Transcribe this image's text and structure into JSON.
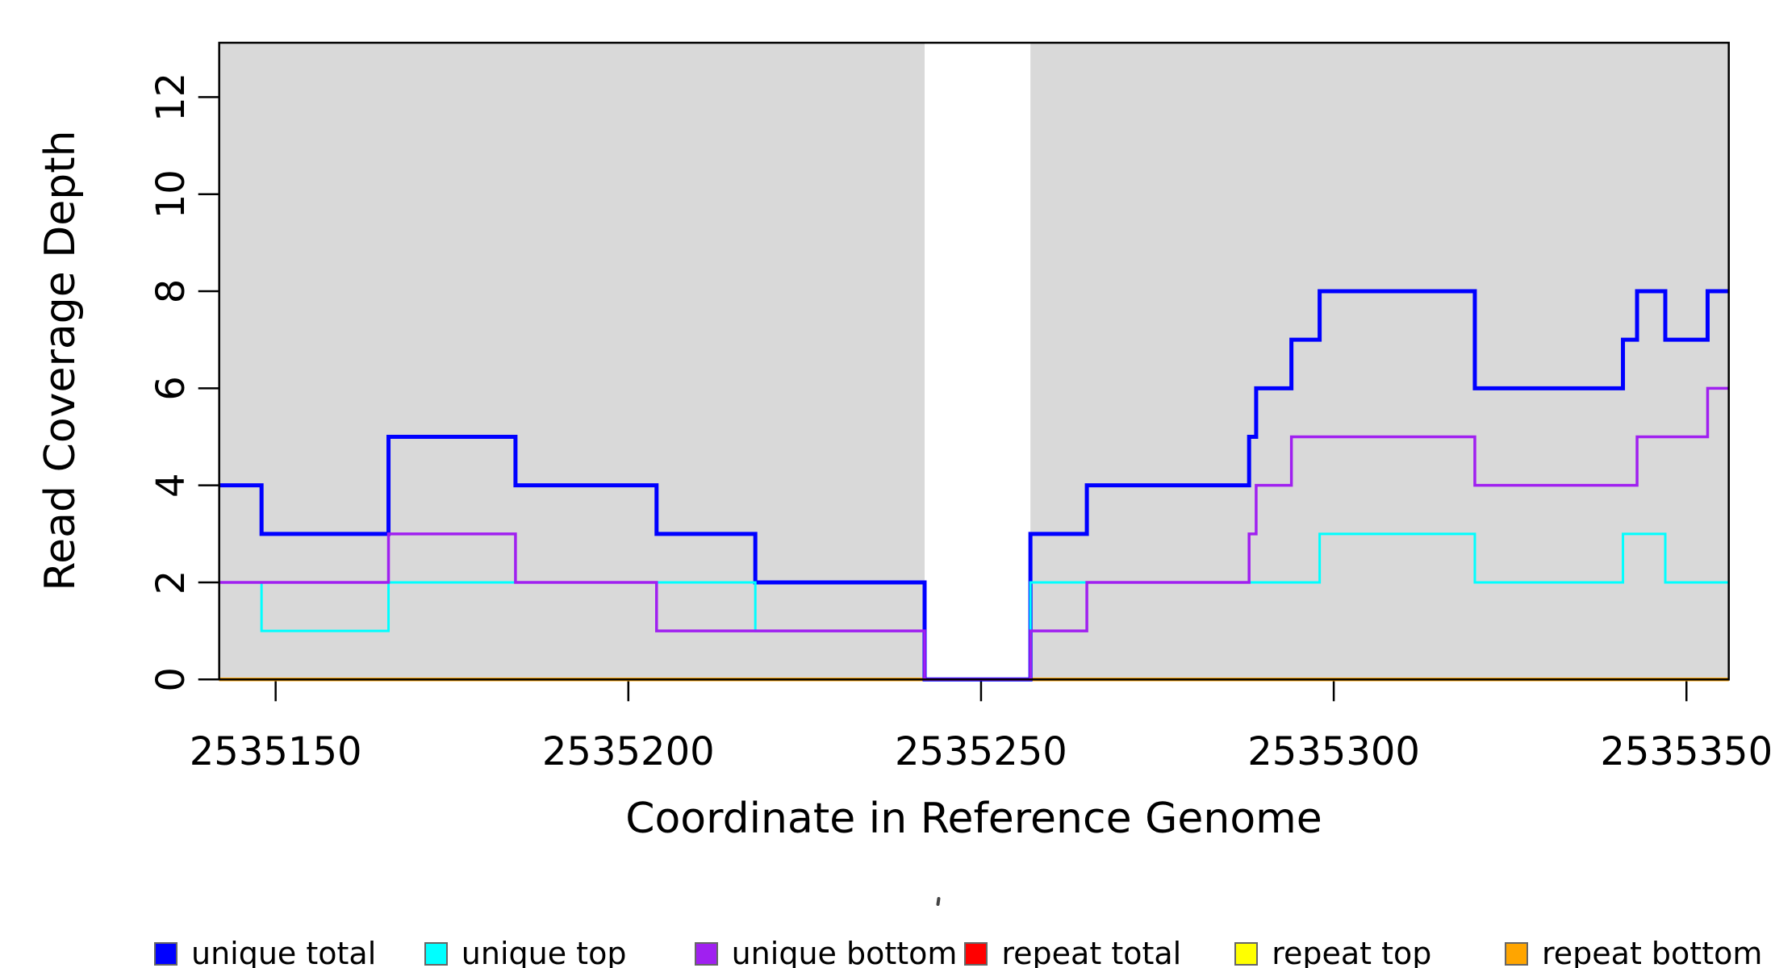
{
  "chart_data": {
    "type": "line",
    "subtype": "step-after",
    "title": "",
    "xlabel": "Coordinate in Reference Genome",
    "ylabel": "Read Coverage Depth",
    "xlim": [
      2535142,
      2535356
    ],
    "ylim": [
      0,
      13.12
    ],
    "x_ticks": [
      2535150,
      2535200,
      2535250,
      2535300,
      2535350
    ],
    "y_ticks": [
      0,
      2,
      4,
      6,
      8,
      10,
      12
    ],
    "grid": false,
    "legend_position": "bottom",
    "plot_background": "#ffffff",
    "shaded_region_color": "#d9d9d9",
    "frame_color": "#000000",
    "shaded_regions": [
      {
        "x0": 2535142,
        "x1": 2535242
      },
      {
        "x0": 2535257,
        "x1": 2535356
      }
    ],
    "series": [
      {
        "name": "repeat total",
        "color": "#ff0000",
        "width": 4,
        "points": [
          [
            2535142,
            0
          ],
          [
            2535356,
            0
          ]
        ]
      },
      {
        "name": "repeat top",
        "color": "#ffff00",
        "width": 4,
        "points": [
          [
            2535142,
            0
          ],
          [
            2535356,
            0
          ]
        ]
      },
      {
        "name": "repeat bottom",
        "color": "#ffa500",
        "width": 4.5,
        "points": [
          [
            2535142,
            0
          ],
          [
            2535356,
            0
          ]
        ]
      },
      {
        "name": "unique total",
        "color": "#0000ff",
        "width": 5,
        "points": [
          [
            2535142,
            4
          ],
          [
            2535148,
            3
          ],
          [
            2535166,
            5
          ],
          [
            2535184,
            4
          ],
          [
            2535204,
            3
          ],
          [
            2535218,
            2
          ],
          [
            2535242,
            0
          ],
          [
            2535257,
            3
          ],
          [
            2535265,
            4
          ],
          [
            2535288,
            5
          ],
          [
            2535289,
            6
          ],
          [
            2535294,
            7
          ],
          [
            2535298,
            8
          ],
          [
            2535320,
            6
          ],
          [
            2535341,
            7
          ],
          [
            2535343,
            8
          ],
          [
            2535347,
            7
          ],
          [
            2535353,
            8
          ],
          [
            2535356,
            8
          ]
        ]
      },
      {
        "name": "unique top",
        "color": "#00ffff",
        "width": 3,
        "points": [
          [
            2535142,
            2
          ],
          [
            2535148,
            1
          ],
          [
            2535166,
            2
          ],
          [
            2535218,
            1
          ],
          [
            2535242,
            0
          ],
          [
            2535257,
            2
          ],
          [
            2535298,
            3
          ],
          [
            2535320,
            2
          ],
          [
            2535341,
            3
          ],
          [
            2535347,
            2
          ],
          [
            2535356,
            2
          ]
        ]
      },
      {
        "name": "unique bottom",
        "color": "#a020f0",
        "width": 3.5,
        "points": [
          [
            2535142,
            2
          ],
          [
            2535166,
            3
          ],
          [
            2535184,
            2
          ],
          [
            2535204,
            1
          ],
          [
            2535242,
            0
          ],
          [
            2535257,
            1
          ],
          [
            2535265,
            2
          ],
          [
            2535288,
            3
          ],
          [
            2535289,
            4
          ],
          [
            2535294,
            5
          ],
          [
            2535320,
            4
          ],
          [
            2535343,
            5
          ],
          [
            2535353,
            6
          ],
          [
            2535356,
            6
          ]
        ]
      }
    ]
  },
  "legend": {
    "items": [
      {
        "label": "unique total",
        "color": "#0000ff"
      },
      {
        "label": "unique top",
        "color": "#00ffff"
      },
      {
        "label": "unique bottom",
        "color": "#a020f0"
      },
      {
        "label": "repeat total",
        "color": "#ff0000"
      },
      {
        "label": "repeat top",
        "color": "#ffff00"
      },
      {
        "label": "repeat bottom",
        "color": "#ffa500"
      }
    ]
  }
}
